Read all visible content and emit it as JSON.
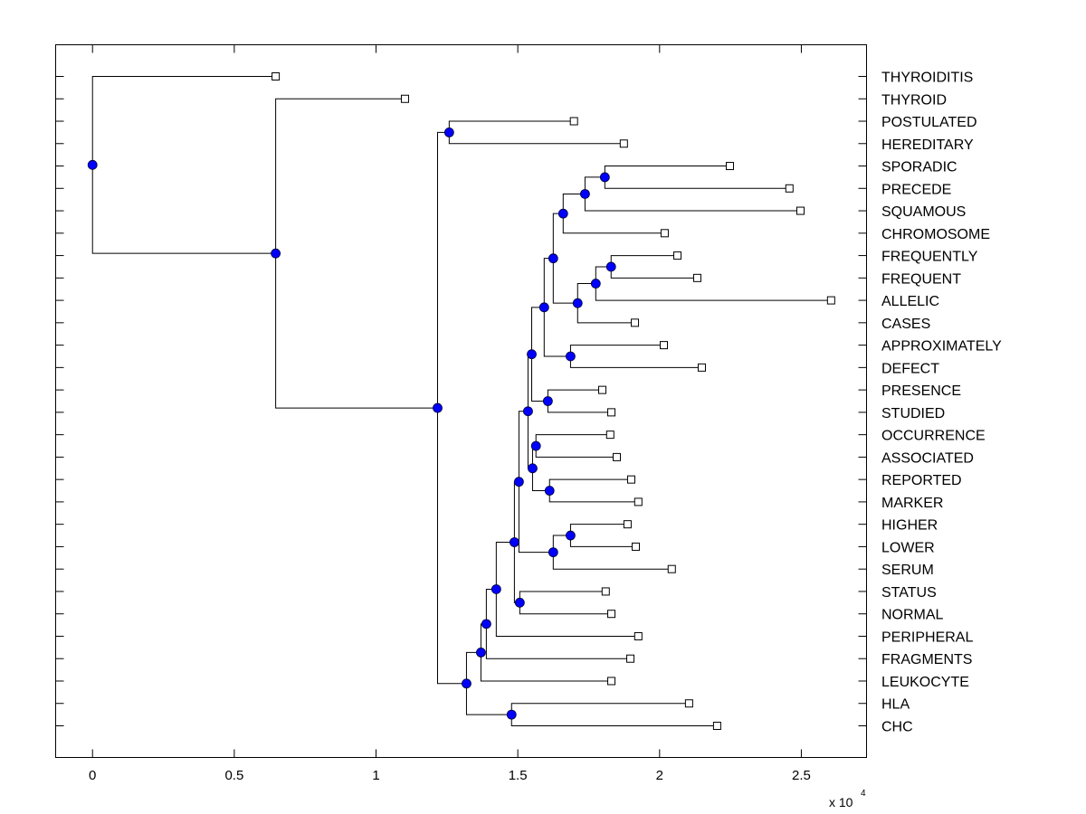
{
  "chart_data": {
    "type": "dendrogram",
    "title": "",
    "xlabel": "",
    "ylabel": "",
    "x_multiplier": "x 10",
    "x_multiplier_exponent": "4",
    "xlim": [
      -0.13,
      2.73
    ],
    "xticks": [
      0,
      0.5,
      1,
      1.5,
      2,
      2.5
    ],
    "xtick_labels": [
      "0",
      "0.5",
      "1",
      "1.5",
      "2",
      "2.5"
    ],
    "grid": false,
    "leaf_marker": "open-square",
    "node_marker": "filled-circle",
    "node_color": "#0000ff",
    "line_color": "#000000",
    "leaves": [
      {
        "label": "THYROIDITIS",
        "x": 0.646
      },
      {
        "label": "THYROID",
        "x": 1.102
      },
      {
        "label": "POSTULATED",
        "x": 1.698
      },
      {
        "label": "HEREDITARY",
        "x": 1.874
      },
      {
        "label": "SPORADIC",
        "x": 2.248
      },
      {
        "label": "PRECEDE",
        "x": 2.458
      },
      {
        "label": "SQUAMOUS",
        "x": 2.497
      },
      {
        "label": "CHROMOSOME",
        "x": 2.018
      },
      {
        "label": "FREQUENTLY",
        "x": 2.063
      },
      {
        "label": "FREQUENT",
        "x": 2.133
      },
      {
        "label": "ALLELIC",
        "x": 2.605
      },
      {
        "label": "CASES",
        "x": 1.913
      },
      {
        "label": "APPROXIMATELY",
        "x": 2.015
      },
      {
        "label": "DEFECT",
        "x": 2.149
      },
      {
        "label": "PRESENCE",
        "x": 1.798
      },
      {
        "label": "STUDIED",
        "x": 1.83
      },
      {
        "label": "OCCURRENCE",
        "x": 1.826
      },
      {
        "label": "ASSOCIATED",
        "x": 1.849
      },
      {
        "label": "REPORTED",
        "x": 1.9
      },
      {
        "label": "MARKER",
        "x": 1.925
      },
      {
        "label": "HIGHER",
        "x": 1.887
      },
      {
        "label": "LOWER",
        "x": 1.916
      },
      {
        "label": "SERUM",
        "x": 2.043
      },
      {
        "label": "STATUS",
        "x": 1.81
      },
      {
        "label": "NORMAL",
        "x": 1.83
      },
      {
        "label": "PERIPHERAL",
        "x": 1.925
      },
      {
        "label": "FRAGMENTS",
        "x": 1.897
      },
      {
        "label": "LEUKOCYTE",
        "x": 1.83
      },
      {
        "label": "HLA",
        "x": 2.104
      },
      {
        "label": "CHC",
        "x": 2.203
      }
    ],
    "nodes": [
      {
        "id": "root",
        "x": 0.0,
        "children": [
          "L0",
          "nA"
        ]
      },
      {
        "id": "nA",
        "x": 0.646,
        "children": [
          "L1",
          "nB"
        ]
      },
      {
        "id": "nB",
        "x": 1.217,
        "children": [
          "nC",
          "nD"
        ]
      },
      {
        "id": "nC",
        "x": 1.258,
        "children": [
          "L2",
          "L3"
        ]
      },
      {
        "id": "nD",
        "x": 1.319,
        "children": [
          "nE",
          "nF"
        ]
      },
      {
        "id": "nF",
        "x": 1.478,
        "children": [
          "L28",
          "L29"
        ]
      },
      {
        "id": "nE",
        "x": 1.37,
        "children": [
          "nG",
          "L27"
        ]
      },
      {
        "id": "nG",
        "x": 1.389,
        "children": [
          "nH",
          "L26"
        ]
      },
      {
        "id": "nH",
        "x": 1.424,
        "children": [
          "nI",
          "L25"
        ]
      },
      {
        "id": "nI",
        "x": 1.488,
        "children": [
          "nJ",
          "nM"
        ]
      },
      {
        "id": "nM",
        "x": 1.507,
        "children": [
          "L23",
          "L24"
        ]
      },
      {
        "id": "nJ",
        "x": 1.504,
        "children": [
          "nP",
          "nK"
        ]
      },
      {
        "id": "nK",
        "x": 1.625,
        "children": [
          "nL",
          "L22"
        ]
      },
      {
        "id": "nL",
        "x": 1.686,
        "children": [
          "L20",
          "L21"
        ]
      },
      {
        "id": "nP",
        "x": 1.536,
        "children": [
          "nQ",
          "nR"
        ]
      },
      {
        "id": "nR",
        "x": 1.552,
        "children": [
          "nU",
          "nV"
        ]
      },
      {
        "id": "nU",
        "x": 1.564,
        "children": [
          "L16",
          "L17"
        ]
      },
      {
        "id": "nV",
        "x": 1.612,
        "children": [
          "L18",
          "L19"
        ]
      },
      {
        "id": "nQ",
        "x": 1.549,
        "children": [
          "nS",
          "nT"
        ]
      },
      {
        "id": "nT",
        "x": 1.606,
        "children": [
          "L14",
          "L15"
        ]
      },
      {
        "id": "nS",
        "x": 1.593,
        "children": [
          "nW",
          "nX"
        ]
      },
      {
        "id": "nX",
        "x": 1.686,
        "children": [
          "L12",
          "L13"
        ]
      },
      {
        "id": "nW",
        "x": 1.625,
        "children": [
          "nY",
          "nZ"
        ]
      },
      {
        "id": "nY",
        "x": 1.66,
        "children": [
          "nAA",
          "L7"
        ]
      },
      {
        "id": "nAA",
        "x": 1.737,
        "children": [
          "nAB",
          "L6"
        ]
      },
      {
        "id": "nAB",
        "x": 1.807,
        "children": [
          "L4",
          "L5"
        ]
      },
      {
        "id": "nZ",
        "x": 1.711,
        "children": [
          "nAC",
          "L11"
        ]
      },
      {
        "id": "nAC",
        "x": 1.775,
        "children": [
          "nAD",
          "L10"
        ]
      },
      {
        "id": "nAD",
        "x": 1.829,
        "children": [
          "L8",
          "L9"
        ]
      }
    ]
  }
}
